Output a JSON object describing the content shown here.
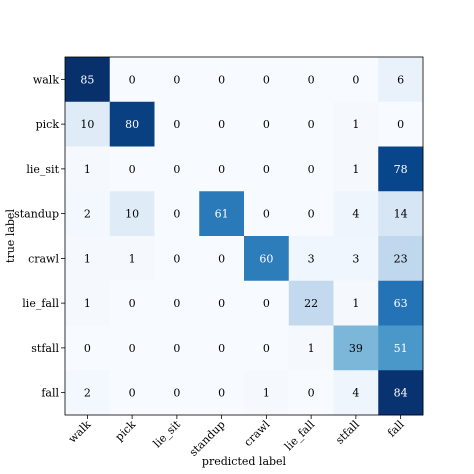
{
  "chart_data": {
    "type": "heatmap",
    "title": "",
    "xlabel": "predicted label",
    "ylabel": "true label",
    "x_categories": [
      "walk",
      "pick",
      "lie_sit",
      "standup",
      "crawl",
      "lie_fall",
      "stfall",
      "fall"
    ],
    "y_categories": [
      "walk",
      "pick",
      "lie_sit",
      "standup",
      "crawl",
      "lie_fall",
      "stfall",
      "fall"
    ],
    "values": [
      [
        85,
        0,
        0,
        0,
        0,
        0,
        0,
        6
      ],
      [
        10,
        80,
        0,
        0,
        0,
        0,
        1,
        0
      ],
      [
        1,
        0,
        0,
        0,
        0,
        0,
        1,
        78
      ],
      [
        2,
        10,
        0,
        61,
        0,
        0,
        4,
        14
      ],
      [
        1,
        1,
        0,
        0,
        60,
        3,
        3,
        23
      ],
      [
        1,
        0,
        0,
        0,
        0,
        22,
        1,
        63
      ],
      [
        0,
        0,
        0,
        0,
        0,
        1,
        39,
        51
      ],
      [
        2,
        0,
        0,
        0,
        1,
        0,
        4,
        84
      ]
    ],
    "colormap": "Blues",
    "color_range": [
      0,
      85
    ],
    "grid": false,
    "colors": {
      "low": "#f7fbff",
      "high": "#08306b",
      "frame": "#000000"
    }
  }
}
